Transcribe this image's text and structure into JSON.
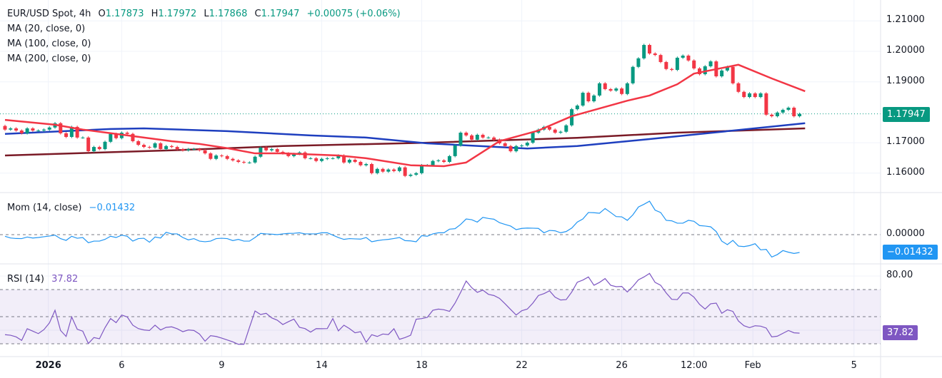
{
  "header": {
    "symbol": "EUR/USD Spot, 4h",
    "open_label": "O",
    "open": "1.17873",
    "high_label": "H",
    "high": "1.17972",
    "low_label": "L",
    "low": "1.17868",
    "close_label": "C",
    "close": "1.17947",
    "change": "+0.00075 (+0.06%)"
  },
  "indicators": {
    "ma20": "MA (20, close, 0)",
    "ma100": "MA (100, close, 0)",
    "ma200": "MA (200, close, 0)",
    "mom_label": "Mom (14, close)",
    "mom_value": "−0.01432",
    "rsi_label": "RSI (14)",
    "rsi_value": "37.82"
  },
  "price_axis": {
    "ticks": [
      "1.21000",
      "1.20000",
      "1.19000",
      "1.17000",
      "1.16000"
    ],
    "last_price": "1.17947",
    "mom_ticks": [
      "0.00000"
    ],
    "mom_last": "−0.01432",
    "rsi_ticks": [
      "80.00"
    ],
    "rsi_last": "37.82"
  },
  "colors": {
    "up": "#089981",
    "down": "#f23645",
    "ma20": "#f23645",
    "ma100": "#1e3fbf",
    "ma200": "#7a1a26",
    "mom": "#2196f3",
    "rsi": "#7e57c2"
  },
  "chart_data": [
    {
      "type": "candlestick",
      "price_ticks": [
        1.21,
        1.2,
        1.19,
        1.17,
        1.16
      ],
      "first_open": 1.1755,
      "closes": [
        1.1743,
        1.1747,
        1.174,
        1.1731,
        1.1747,
        1.174,
        1.174,
        1.1743,
        1.175,
        1.1764,
        1.1731,
        1.1719,
        1.1752,
        1.1717,
        1.1717,
        1.1672,
        1.1686,
        1.1679,
        1.1703,
        1.1729,
        1.1715,
        1.1733,
        1.1729,
        1.1705,
        1.1693,
        1.1686,
        1.1684,
        1.1698,
        1.1679,
        1.1689,
        1.1686,
        1.1679,
        1.1675,
        1.1679,
        1.1679,
        1.1675,
        1.1665,
        1.1647,
        1.1658,
        1.1656,
        1.1647,
        1.1642,
        1.1637,
        1.1635,
        1.1635,
        1.1654,
        1.1684,
        1.1675,
        1.1679,
        1.167,
        1.1665,
        1.1656,
        1.1663,
        1.1668,
        1.1649,
        1.1649,
        1.164,
        1.1647,
        1.1649,
        1.1649,
        1.1658,
        1.1635,
        1.1644,
        1.1637,
        1.1626,
        1.163,
        1.16,
        1.1614,
        1.1605,
        1.1612,
        1.1607,
        1.1619,
        1.1591,
        1.1595,
        1.16,
        1.1626,
        1.1626,
        1.164,
        1.1642,
        1.1637,
        1.1656,
        1.1691,
        1.1733,
        1.1724,
        1.171,
        1.1726,
        1.1717,
        1.1717,
        1.171,
        1.1698,
        1.1689,
        1.1672,
        1.1689,
        1.1691,
        1.17,
        1.1733,
        1.1743,
        1.1752,
        1.1743,
        1.1733,
        1.1736,
        1.1757,
        1.181,
        1.1822,
        1.1864,
        1.1836,
        1.1855,
        1.1895,
        1.1876,
        1.1871,
        1.1878,
        1.186,
        1.1895,
        1.1949,
        1.1977,
        1.2021,
        1.1993,
        1.1988,
        1.1965,
        1.1942,
        1.1939,
        1.1979,
        1.1986,
        1.197,
        1.1944,
        1.1925,
        1.1951,
        1.1967,
        1.1918,
        1.1937,
        1.1949,
        1.1895,
        1.1867,
        1.185,
        1.1862,
        1.185,
        1.1862,
        1.1792,
        1.1787,
        1.1799,
        1.1808,
        1.1815,
        1.1787,
        1.17947
      ],
      "ma20": [
        [
          0,
          1.1775
        ],
        [
          9,
          1.1759
        ],
        [
          14,
          1.1743
        ],
        [
          20,
          1.1729
        ],
        [
          30,
          1.1705
        ],
        [
          35,
          1.1696
        ],
        [
          40,
          1.1682
        ],
        [
          45,
          1.1665
        ],
        [
          50,
          1.1665
        ],
        [
          60,
          1.1658
        ],
        [
          65,
          1.1649
        ],
        [
          73,
          1.1626
        ],
        [
          79,
          1.1623
        ],
        [
          83,
          1.1635
        ],
        [
          89,
          1.1705
        ],
        [
          96,
          1.174
        ],
        [
          102,
          1.1787
        ],
        [
          112,
          1.1838
        ],
        [
          116,
          1.1855
        ],
        [
          121,
          1.1892
        ],
        [
          124,
          1.1927
        ],
        [
          132,
          1.1956
        ],
        [
          138,
          1.1911
        ],
        [
          144,
          1.1869
        ]
      ],
      "ma100": [
        [
          0,
          1.1729
        ],
        [
          19,
          1.1745
        ],
        [
          25,
          1.1747
        ],
        [
          40,
          1.1738
        ],
        [
          55,
          1.1724
        ],
        [
          65,
          1.1717
        ],
        [
          76,
          1.1698
        ],
        [
          94,
          1.1681
        ],
        [
          103,
          1.1689
        ],
        [
          116,
          1.1712
        ],
        [
          129,
          1.1736
        ],
        [
          144,
          1.1764
        ]
      ],
      "ma200": [
        [
          0,
          1.1658
        ],
        [
          30,
          1.1675
        ],
        [
          50,
          1.1689
        ],
        [
          76,
          1.17
        ],
        [
          103,
          1.1716
        ],
        [
          121,
          1.1733
        ],
        [
          144,
          1.1747
        ]
      ],
      "x_labels": [
        {
          "bar": 7.8,
          "text": "2026",
          "bold": true
        },
        {
          "bar": 21,
          "text": "6"
        },
        {
          "bar": 39,
          "text": "9"
        },
        {
          "bar": 57,
          "text": "14"
        },
        {
          "bar": 75,
          "text": "18"
        },
        {
          "bar": 93,
          "text": "22"
        },
        {
          "bar": 111,
          "text": "26"
        },
        {
          "bar": 124,
          "text": "12:00"
        },
        {
          "bar": 134.6,
          "text": "Feb"
        },
        {
          "bar": 152.8,
          "text": "5"
        }
      ]
    },
    {
      "type": "line",
      "name": "Mom (14, close)",
      "zero_line": 0,
      "values": [
        -0.0013,
        -0.0027,
        -0.0031,
        -0.0032,
        -0.0019,
        -0.0027,
        -0.0023,
        -0.0017,
        -0.0011,
        -0.0004,
        -0.0032,
        -0.0046,
        -0.0013,
        -0.0029,
        -0.0023,
        -0.0065,
        -0.0052,
        -0.0052,
        -0.0038,
        -0.0013,
        -0.0023,
        -0.0004,
        -0.0013,
        -0.0052,
        -0.0032,
        -0.0029,
        -0.0061,
        -0.0019,
        -0.0027,
        0.0019,
        0.0006,
        0.0006,
        -0.0023,
        -0.0042,
        -0.0032,
        -0.0052,
        -0.0057,
        -0.0052,
        -0.0032,
        -0.0029,
        -0.0032,
        -0.0048,
        -0.0038,
        -0.0052,
        -0.0052,
        -0.0023,
        0.001,
        0.0006,
        0.0004,
        0.0,
        0.0006,
        0.001,
        0.0011,
        0.0015,
        0.0006,
        0.0006,
        0.0006,
        0.0015,
        0.0015,
        -0.0004,
        -0.0023,
        -0.0038,
        -0.0032,
        -0.0034,
        -0.0036,
        -0.0023,
        -0.0057,
        -0.0048,
        -0.0042,
        -0.0038,
        -0.0031,
        -0.0023,
        -0.0048,
        -0.005,
        -0.0057,
        -0.0008,
        -0.0013,
        0.0006,
        0.0015,
        0.0015,
        0.0044,
        0.0048,
        0.0082,
        0.0126,
        0.012,
        0.0101,
        0.0139,
        0.013,
        0.0124,
        0.0096,
        0.0082,
        0.0069,
        0.004,
        0.005,
        0.0053,
        0.0052,
        0.005,
        0.0015,
        0.0034,
        0.0031,
        0.0015,
        0.0025,
        0.0053,
        0.0101,
        0.0126,
        0.0178,
        0.0176,
        0.0172,
        0.021,
        0.0178,
        0.0145,
        0.0143,
        0.0115,
        0.0159,
        0.0222,
        0.0244,
        0.0269,
        0.0197,
        0.0178,
        0.0115,
        0.0111,
        0.0092,
        0.0092,
        0.0115,
        0.0107,
        0.0073,
        0.0069,
        0.0063,
        0.0025,
        -0.0052,
        -0.008,
        -0.0046,
        -0.0092,
        -0.0096,
        -0.0088,
        -0.0073,
        -0.0122,
        -0.0118,
        -0.018,
        -0.016,
        -0.0128,
        -0.0141,
        -0.0151,
        -0.01432
      ]
    },
    {
      "type": "line",
      "name": "RSI (14)",
      "levels": [
        70,
        50,
        30
      ],
      "grid": [
        80,
        40
      ],
      "values": [
        36.7,
        36.3,
        35.1,
        32.5,
        41.1,
        39.3,
        37.5,
        40.4,
        45.4,
        54.7,
        39.8,
        35.4,
        49.8,
        40.7,
        39.3,
        30.2,
        34.6,
        33.7,
        41.9,
        48.6,
        45.6,
        51.2,
        49.8,
        43.7,
        41.2,
        40.2,
        39.8,
        43.7,
        40.2,
        42.1,
        42.5,
        41.1,
        38.9,
        40.2,
        39.8,
        37.2,
        31.9,
        36.0,
        35.4,
        34.2,
        32.8,
        31.4,
        29.6,
        29.6,
        42.1,
        54.2,
        51.6,
        52.5,
        49.1,
        47.4,
        44.2,
        46.3,
        48.2,
        42.1,
        41.2,
        38.6,
        41.2,
        41.1,
        41.2,
        48.6,
        39.5,
        43.7,
        41.2,
        38.1,
        38.9,
        31.1,
        36.7,
        35.4,
        37.2,
        36.8,
        41.1,
        33.3,
        34.6,
        36.3,
        48.1,
        48.6,
        49.5,
        54.7,
        55.6,
        55.1,
        53.9,
        60.0,
        67.9,
        76.3,
        71.4,
        67.9,
        69.6,
        66.5,
        65.6,
        63.5,
        59.5,
        55.3,
        51.2,
        54.4,
        55.6,
        60.0,
        65.6,
        67.0,
        69.1,
        64.4,
        62.3,
        62.6,
        68.2,
        75.4,
        77.0,
        79.3,
        73.2,
        75.3,
        78.1,
        73.2,
        72.1,
        72.3,
        68.2,
        72.3,
        77.2,
        79.3,
        81.9,
        75.3,
        73.2,
        67.5,
        62.8,
        62.6,
        67.5,
        67.5,
        64.4,
        59.1,
        55.6,
        59.5,
        60.0,
        52.5,
        55.1,
        53.9,
        46.8,
        43.3,
        41.9,
        43.3,
        43.0,
        41.6,
        35.1,
        35.6,
        37.7,
        39.8,
        38.1,
        37.82
      ]
    }
  ]
}
